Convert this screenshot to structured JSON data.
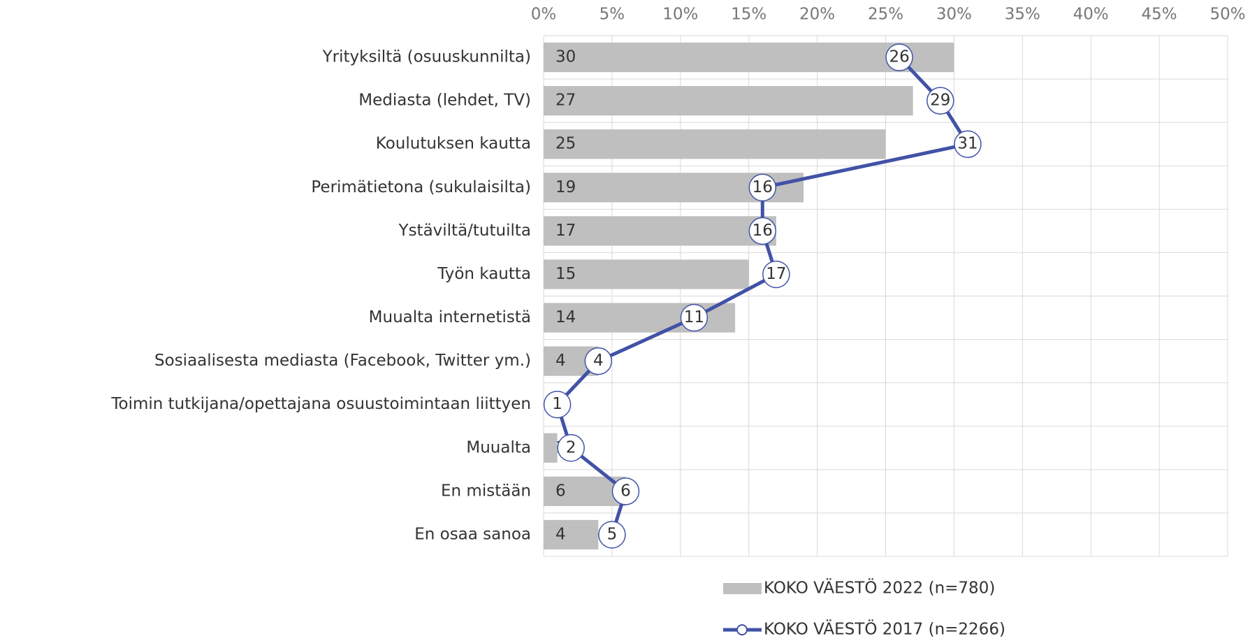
{
  "chart_data": {
    "type": "bar",
    "orientation": "horizontal",
    "categories": [
      "Yrityksiltä (osuuskunnilta)",
      "Mediasta (lehdet, TV)",
      "Koulutuksen kautta",
      "Perimätietona (sukulaisilta)",
      "Ystäviltä/tutuilta",
      "Työn kautta",
      "Muualta internetistä",
      "Sosiaalisesta mediasta (Facebook, Twitter ym.)",
      "Toimin tutkijana/opettajana osuustoimintaan liittyen",
      "Muualta",
      "En mistään",
      "En osaa sanoa"
    ],
    "series": [
      {
        "name": "KOKO VÄESTÖ 2022 (n=780)",
        "type": "bar",
        "color": "#bfbfbf",
        "values": [
          30,
          27,
          25,
          19,
          17,
          15,
          14,
          4,
          0,
          1,
          6,
          4
        ]
      },
      {
        "name": "KOKO VÄESTÖ 2017 (n=2266)",
        "type": "line",
        "color": "#4152a6",
        "values": [
          26,
          29,
          31,
          16,
          16,
          17,
          11,
          4,
          1,
          2,
          6,
          5
        ]
      }
    ],
    "xlim": [
      0,
      50
    ],
    "xticks": [
      {
        "value": 0,
        "label": "0%"
      },
      {
        "value": 5,
        "label": "5%"
      },
      {
        "value": 10,
        "label": "10%"
      },
      {
        "value": 15,
        "label": "15%"
      },
      {
        "value": 20,
        "label": "20%"
      },
      {
        "value": 25,
        "label": "25%"
      },
      {
        "value": 30,
        "label": "30%"
      },
      {
        "value": 35,
        "label": "35%"
      },
      {
        "value": 40,
        "label": "40%"
      },
      {
        "value": 45,
        "label": "45%"
      },
      {
        "value": 50,
        "label": "50%"
      }
    ],
    "grid": true,
    "legend": "bottom"
  }
}
